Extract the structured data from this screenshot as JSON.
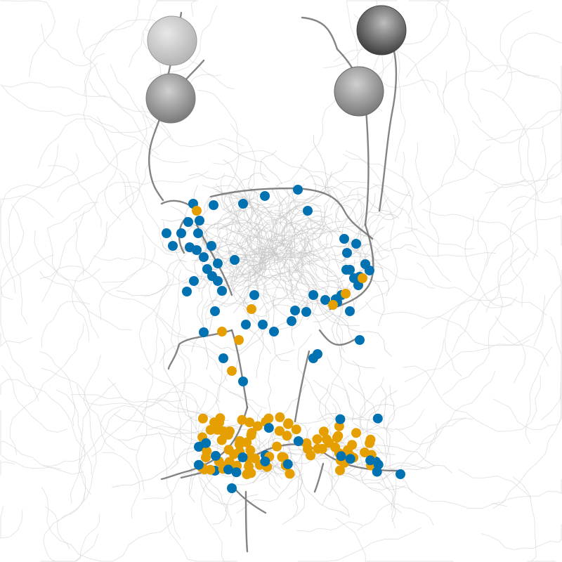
{
  "image": {
    "subject": "neuron-morphology-render",
    "background": "#ffffff",
    "colors": {
      "background_neurites": "#d9d9d9",
      "highlighted_neurites": "#6f6f6f",
      "soma_light": "#bdbdbd",
      "soma_dark": "#555555",
      "marker_blue": "#0072b2",
      "marker_orange": "#e69f00"
    },
    "marker_counts": {
      "blue": 96,
      "orange": 90
    },
    "somata_count": 4
  }
}
